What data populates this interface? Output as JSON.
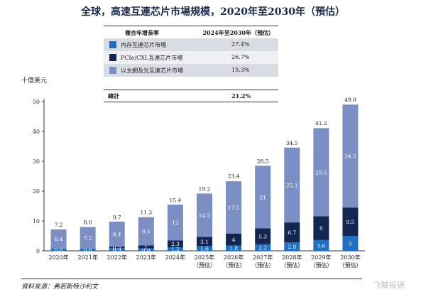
{
  "title": "全球，高速互連芯片市場規模，2020年至2030年（預估）",
  "unit_label": "十億美元",
  "legend": {
    "header_left": "複合年增長率",
    "header_right": "2024年至2030年（預估）",
    "rows": [
      {
        "label": "內存互連芯片市場",
        "cagr": "27.4%",
        "color": "#1f6fc5",
        "row_bg": "#d9dce3"
      },
      {
        "label": "PCIe/CXL互連芯片市場",
        "cagr": "26.7%",
        "color": "#12264f",
        "row_bg": "#eef0f3"
      },
      {
        "label": "以太網及光互連芯片市場",
        "cagr": "19.3%",
        "color": "#7c8fc4",
        "row_bg": "#d9dce3"
      }
    ],
    "total_label": "總計",
    "total_value": "21.2%"
  },
  "source": "資料來源：弗若斯特沙利文",
  "watermark": "飞鲸投研",
  "chart_data": {
    "type": "bar",
    "stacked": true,
    "categories": [
      "2020年",
      "2021年",
      "2022年",
      "2023年",
      "2024年",
      "2025年（預估）",
      "2026年（預估）",
      "2027年（預估）",
      "2028年（預估）",
      "2029年（預估）",
      "2030年（預估）"
    ],
    "category_lines": [
      [
        "2020年"
      ],
      [
        "2021年"
      ],
      [
        "2022年"
      ],
      [
        "2023年"
      ],
      [
        "2024年"
      ],
      [
        "2025年",
        "（預估）"
      ],
      [
        "2026年",
        "（預估）"
      ],
      [
        "2027年",
        "（預估）"
      ],
      [
        "2028年",
        "（預估）"
      ],
      [
        "2029年",
        "（預估）"
      ],
      [
        "2030年",
        "（預估）"
      ]
    ],
    "series": [
      {
        "name": "內存互連芯片市場",
        "color": "#1f6fc5",
        "values": [
          0.8,
          0.8,
          0.9,
          0.8,
          1.2,
          1.6,
          1.8,
          2.2,
          2.8,
          3.6,
          5.0
        ]
      },
      {
        "name": "PCIe/CXL互連芯片市場",
        "color": "#12264f",
        "values": [
          null,
          null,
          0.5,
          1.0,
          2.3,
          3.1,
          4.0,
          5.3,
          6.7,
          8.0,
          9.5
        ]
      },
      {
        "name": "以太網及光互連芯片市場",
        "color": "#7c8fc4",
        "values": [
          6.4,
          7.2,
          8.4,
          9.5,
          12.0,
          14.5,
          17.5,
          21.0,
          25.1,
          29.5,
          34.5
        ]
      }
    ],
    "totals": [
      7.2,
      8.0,
      9.7,
      11.3,
      15.4,
      19.2,
      23.4,
      28.5,
      34.5,
      41.2,
      49.0
    ],
    "ylabel": "十億美元",
    "ylim": [
      0,
      50
    ],
    "yticks": [
      0,
      10,
      20,
      30,
      40,
      50
    ],
    "grid": false
  }
}
